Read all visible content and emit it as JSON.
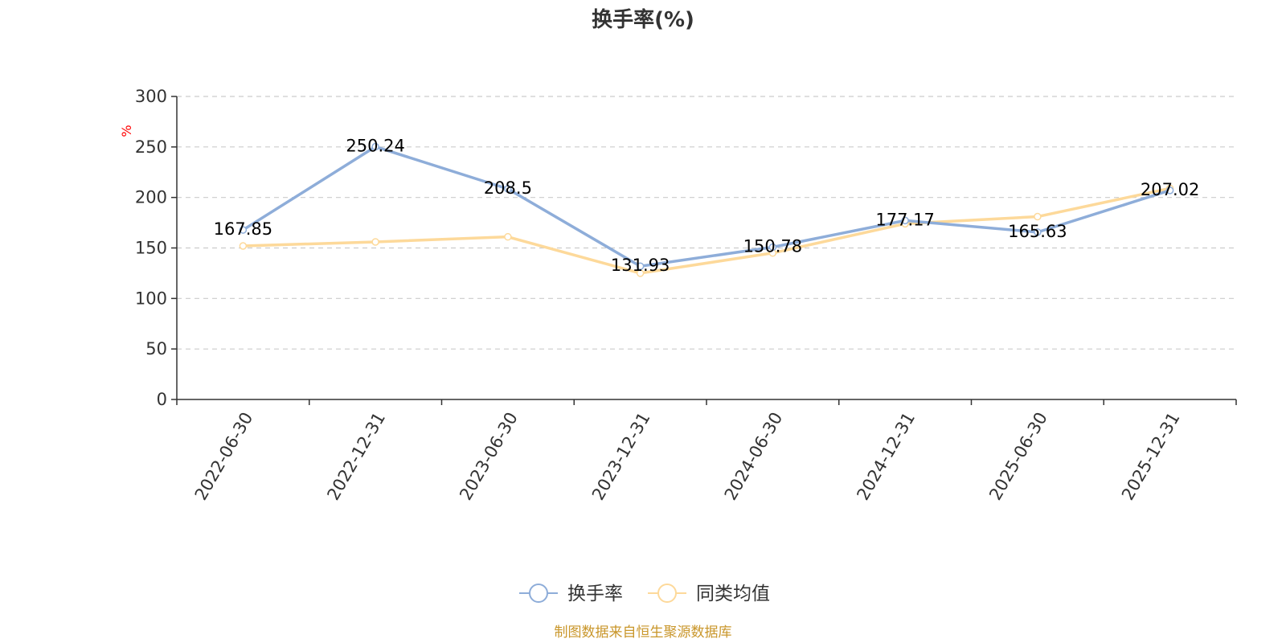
{
  "chart_data": {
    "type": "line",
    "title": "换手率(%)",
    "ylabel": "%",
    "xlabel": "",
    "ylim": [
      0,
      300
    ],
    "yticks": [
      0,
      50,
      100,
      150,
      200,
      250,
      300
    ],
    "grid": true,
    "legend_position": "bottom-center",
    "categories": [
      "2022-06-30",
      "2022-12-31",
      "2023-06-30",
      "2023-12-31",
      "2024-06-30",
      "2024-12-31",
      "2025-06-30",
      "2025-12-31"
    ],
    "series": [
      {
        "name": "换手率",
        "color": "#8eadd9",
        "values": [
          167.85,
          250.24,
          208.5,
          131.93,
          150.78,
          177.17,
          165.63,
          207.02
        ],
        "labels": [
          "167.85",
          "250.24",
          "208.5",
          "131.93",
          "150.78",
          "177.17",
          "165.63",
          "207.02"
        ]
      },
      {
        "name": "同类均值",
        "color": "#fdd99a",
        "values": [
          152,
          156,
          161,
          125,
          145,
          174,
          181,
          209
        ]
      }
    ],
    "colors": {
      "ylabel": "#ff0000",
      "source": "#c9962a",
      "axis": "#333333",
      "grid": "#cccccc"
    },
    "source": "制图数据来自恒生聚源数据库"
  }
}
